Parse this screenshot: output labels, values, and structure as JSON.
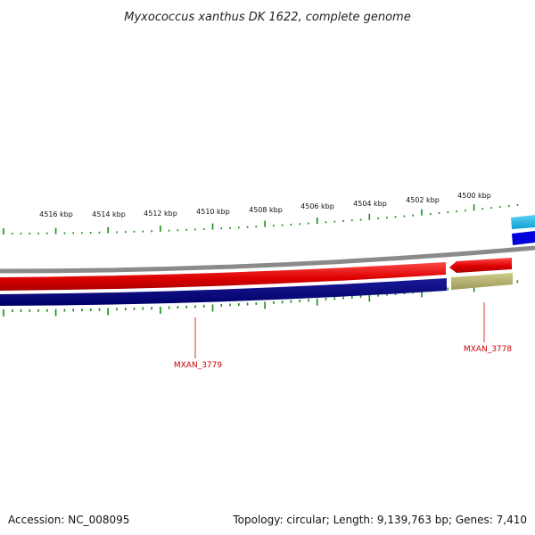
{
  "title": "Myxococcus xanthus DK 1622, complete genome",
  "footer": {
    "accession": "Accession: NC_008095",
    "stats": "Topology: circular; Length: 9,139,763 bp; Genes: 7,410"
  },
  "scale": {
    "tick_labels": [
      "4516 kbp",
      "4514 kbp",
      "4512 kbp",
      "4510 kbp",
      "4508 kbp",
      "4506 kbp",
      "4504 kbp",
      "4502 kbp",
      "4500 kbp"
    ]
  },
  "features": [
    {
      "label": "MXAN_3779",
      "strand": "reverse"
    },
    {
      "label": "MXAN_3778",
      "strand": "reverse"
    }
  ],
  "colors": {
    "tick": "#1a8a1a",
    "backbone": "#8a8a8a",
    "forward_cds": "#dd0000",
    "reverse_cds": "#000077",
    "reverse_other": "#b0ad6a",
    "outer_cyan": "#1ab4e8",
    "outer_blue": "#0000dd",
    "label": "#cc0000"
  }
}
